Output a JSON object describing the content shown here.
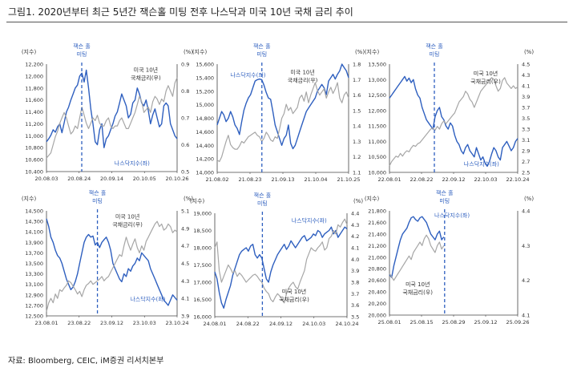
{
  "title": "그림1.  2020년부터 최근 5년간 잭슨홀 미팅 전후 나스닥과 미국 10년 국채 금리 추이",
  "source": "자료: Bloomberg, CEIC, iM증권 리서치본부",
  "colors": {
    "nasdaq": "#2E5FBF",
    "yield": "#A6A6A6",
    "event": "#2E5FBF",
    "axis": "#444444",
    "text": "#333333"
  },
  "chart_data": [
    {
      "type": "line",
      "year": "2020",
      "left_unit": "(지수)",
      "right_unit": "(%)",
      "ylim_left": [
        10400,
        12200
      ],
      "ylim_right": [
        0.5,
        0.9
      ],
      "left_ticks": [
        "12,200",
        "12,000",
        "11,800",
        "11,600",
        "11,400",
        "11,200",
        "11,000",
        "10,800",
        "10,600",
        "10,400"
      ],
      "right_ticks": [
        "0.9",
        "0.8",
        "0.7",
        "0.6",
        "0.5"
      ],
      "x_ticks": [
        "20.08.03",
        "20.08.24",
        "20.09.14",
        "20.10.05",
        "20.10.26"
      ],
      "event_label": [
        "잭슨 홀",
        "미팅"
      ],
      "event_pos": 0.27,
      "nasdaq_label": "나스닥지수(좌)",
      "yield_label": [
        "미국 10년",
        "국채금리(우)"
      ],
      "series": [
        {
          "name": "나스닥지수(좌)",
          "axis": "left",
          "values": [
            10900,
            10950,
            11010,
            11100,
            11060,
            11150,
            11200,
            11050,
            11220,
            11400,
            11480,
            11600,
            11700,
            11800,
            11850,
            12000,
            12050,
            11900,
            12100,
            11800,
            11450,
            11200,
            10900,
            10850,
            11100,
            11200,
            10800,
            10950,
            11000,
            11100,
            11200,
            11330,
            11400,
            11550,
            11700,
            11600,
            11500,
            11300,
            11360,
            11550,
            11600,
            11800,
            11700,
            11550,
            11500,
            11600,
            11420,
            11200,
            11350,
            11450,
            11300,
            11150,
            11200,
            11500,
            11550,
            11500,
            11200,
            11100,
            11000,
            10950
          ]
        },
        {
          "name": "미국 10년 국채금리(우)",
          "axis": "right",
          "values": [
            0.55,
            0.56,
            0.57,
            0.6,
            0.63,
            0.65,
            0.68,
            0.7,
            0.72,
            0.7,
            0.67,
            0.64,
            0.65,
            0.67,
            0.66,
            0.7,
            0.74,
            0.71,
            0.68,
            0.66,
            0.68,
            0.7,
            0.69,
            0.71,
            0.68,
            0.67,
            0.67,
            0.69,
            0.7,
            0.67,
            0.66,
            0.67,
            0.67,
            0.69,
            0.7,
            0.68,
            0.66,
            0.66,
            0.68,
            0.7,
            0.72,
            0.75,
            0.78,
            0.76,
            0.72,
            0.73,
            0.74,
            0.72,
            0.76,
            0.78,
            0.77,
            0.75,
            0.77,
            0.76,
            0.8,
            0.82,
            0.8,
            0.78,
            0.83,
            0.85
          ]
        }
      ]
    },
    {
      "type": "line",
      "year": "2021",
      "left_unit": "(지수)",
      "right_unit": "(%)",
      "ylim_left": [
        14000,
        15600
      ],
      "ylim_right": [
        1.1,
        1.8
      ],
      "left_ticks": [
        "15,600",
        "15,400",
        "15,200",
        "15,000",
        "14,800",
        "14,600",
        "14,400",
        "14,200",
        "14,000"
      ],
      "right_ticks": [
        "1.8",
        "1.7",
        "1.6",
        "1.5",
        "1.4",
        "1.3",
        "1.2",
        "1.1"
      ],
      "x_ticks": [
        "21.08.02",
        "21.08.23",
        "21.09.13",
        "21.10.04",
        "21.10.25"
      ],
      "event_label": [
        "잭슨 홀",
        "미팅"
      ],
      "event_pos": 0.34,
      "nasdaq_label": "나스닥지수(좌)",
      "yield_label": [
        "미국 10년",
        "국채금리(우)"
      ],
      "series": [
        {
          "name": "나스닥지수(좌)",
          "axis": "left",
          "values": [
            14700,
            14800,
            14900,
            14850,
            14750,
            14800,
            14900,
            14820,
            14700,
            14650,
            14560,
            14750,
            14920,
            15020,
            15100,
            15150,
            15250,
            15350,
            15370,
            15380,
            15370,
            15290,
            15180,
            15100,
            15080,
            14900,
            14700,
            14600,
            14500,
            14400,
            14500,
            14550,
            14700,
            14430,
            14350,
            14400,
            14500,
            14600,
            14700,
            14800,
            14900,
            14950,
            15000,
            15050,
            15100,
            15200,
            15250,
            15300,
            15250,
            15150,
            15350,
            15400,
            15450,
            15380,
            15450,
            15500,
            15600,
            15550,
            15500,
            15400
          ]
        },
        {
          "name": "미국 10년 국채금리(우)",
          "axis": "right",
          "values": [
            1.18,
            1.17,
            1.2,
            1.25,
            1.3,
            1.34,
            1.28,
            1.26,
            1.25,
            1.25,
            1.27,
            1.3,
            1.29,
            1.31,
            1.33,
            1.34,
            1.35,
            1.36,
            1.34,
            1.33,
            1.3,
            1.32,
            1.36,
            1.34,
            1.31,
            1.3,
            1.33,
            1.32,
            1.38,
            1.45,
            1.48,
            1.54,
            1.5,
            1.52,
            1.48,
            1.5,
            1.52,
            1.58,
            1.6,
            1.56,
            1.62,
            1.55,
            1.6,
            1.64,
            1.68,
            1.63,
            1.6,
            1.62,
            1.64,
            1.58,
            1.62,
            1.65,
            1.61,
            1.64,
            1.68,
            1.58,
            1.55,
            1.6,
            1.62,
            1.58
          ]
        }
      ]
    },
    {
      "type": "line",
      "year": "2022",
      "left_unit": "(지수)",
      "right_unit": "(%)",
      "ylim_left": [
        10000,
        13500
      ],
      "ylim_right": [
        2.5,
        4.5
      ],
      "left_ticks": [
        "13,500",
        "13,000",
        "12,500",
        "12,000",
        "11,500",
        "11,000",
        "10,500",
        "10,000"
      ],
      "right_ticks": [
        "4.5",
        "4.3",
        "4.1",
        "3.9",
        "3.7",
        "3.5",
        "3.3",
        "3.1",
        "2.9",
        "2.7",
        "2.5"
      ],
      "x_ticks": [
        "22.08.01",
        "22.08.22",
        "22.09.12",
        "22.10.03",
        "22.10.24"
      ],
      "event_label": [
        "잭슨 홀",
        "미팅"
      ],
      "event_pos": 0.35,
      "nasdaq_label": "나스닥지수(좌)",
      "yield_label": [
        "미국 10년",
        "국채금리(우)"
      ],
      "series": [
        {
          "name": "나스닥지수(좌)",
          "axis": "left",
          "values": [
            12400,
            12500,
            12600,
            12700,
            12800,
            12900,
            13000,
            13100,
            12950,
            13050,
            12900,
            13000,
            12700,
            12500,
            12400,
            12100,
            11900,
            11700,
            11600,
            11500,
            11400,
            11800,
            12000,
            12100,
            11800,
            11700,
            11500,
            11400,
            11600,
            11500,
            11200,
            11000,
            10900,
            10700,
            10600,
            10800,
            10900,
            10700,
            10600,
            10500,
            10800,
            10600,
            10400,
            10500,
            10300,
            10200,
            10350,
            10600,
            10800,
            10700,
            10500,
            10400,
            10800,
            10900,
            11000,
            10850,
            10700,
            10800,
            11000,
            11100
          ]
        },
        {
          "name": "미국 10년 국채금리(우)",
          "axis": "right",
          "values": [
            2.62,
            2.7,
            2.75,
            2.8,
            2.78,
            2.85,
            2.8,
            2.86,
            2.9,
            2.88,
            2.95,
            3.0,
            2.98,
            3.03,
            3.05,
            3.1,
            3.15,
            3.2,
            3.25,
            3.3,
            3.32,
            3.28,
            3.35,
            3.3,
            3.4,
            3.45,
            3.4,
            3.45,
            3.5,
            3.55,
            3.6,
            3.7,
            3.8,
            3.85,
            3.9,
            4.0,
            3.95,
            3.85,
            3.8,
            3.7,
            3.8,
            3.9,
            4.0,
            4.05,
            4.1,
            4.15,
            4.2,
            4.25,
            4.22,
            4.1,
            4.0,
            4.05,
            4.2,
            4.25,
            4.15,
            4.1,
            4.05,
            4.1,
            4.05,
            4.08
          ]
        }
      ]
    },
    {
      "type": "line",
      "year": "2023",
      "left_unit": "(지수)",
      "right_unit": "(%)",
      "ylim_left": [
        12500,
        14500
      ],
      "ylim_right": [
        3.9,
        5.1
      ],
      "left_ticks": [
        "14,500",
        "14,300",
        "14,100",
        "13,900",
        "13,700",
        "13,500",
        "13,300",
        "13,100",
        "12,900",
        "12,700",
        "12,500"
      ],
      "right_ticks": [
        "5.1",
        "4.9",
        "4.7",
        "4.5",
        "4.3",
        "4.1",
        "3.9"
      ],
      "x_ticks": [
        "23.08.01",
        "23.08.22",
        "23.09.12",
        "23.10.03",
        "23.10.24"
      ],
      "event_label": [
        "잭슨 홀",
        "미팅"
      ],
      "event_pos": 0.39,
      "nasdaq_label": "나스닥지수(좌)",
      "yield_label": [
        "미국 10년",
        "국채금리(우)"
      ],
      "series": [
        {
          "name": "나스닥지수(좌)",
          "axis": "left",
          "values": [
            14350,
            14200,
            14000,
            13900,
            13750,
            13650,
            13600,
            13500,
            13350,
            13200,
            13100,
            13000,
            13050,
            13150,
            13300,
            13500,
            13700,
            13900,
            14000,
            14050,
            14000,
            14020,
            13850,
            13900,
            13800,
            13900,
            13950,
            14000,
            13900,
            13750,
            13500,
            13400,
            13300,
            13200,
            13150,
            13300,
            13250,
            13400,
            13350,
            13450,
            13500,
            13600,
            13550,
            13700,
            13650,
            13600,
            13550,
            13400,
            13300,
            13200,
            13100,
            13000,
            12900,
            12800,
            12750,
            12700,
            12800,
            12900,
            12850,
            12800
          ]
        },
        {
          "name": "미국 10년 국채금리(우)",
          "axis": "right",
          "values": [
            3.95,
            4.05,
            4.1,
            4.05,
            4.15,
            4.1,
            4.2,
            4.18,
            4.22,
            4.25,
            4.3,
            4.28,
            4.24,
            4.2,
            4.15,
            4.18,
            4.12,
            4.2,
            4.25,
            4.27,
            4.3,
            4.26,
            4.28,
            4.3,
            4.32,
            4.35,
            4.3,
            4.33,
            4.35,
            4.4,
            4.45,
            4.5,
            4.55,
            4.6,
            4.58,
            4.7,
            4.8,
            4.72,
            4.65,
            4.72,
            4.78,
            4.68,
            4.62,
            4.7,
            4.65,
            4.75,
            4.8,
            4.85,
            4.9,
            4.95,
            4.98,
            4.92,
            4.95,
            4.88,
            4.9,
            4.95,
            4.92,
            4.85,
            4.88,
            4.86
          ]
        }
      ]
    },
    {
      "type": "line",
      "year": "2024",
      "left_unit": "(지수)",
      "right_unit": "(%)",
      "ylim_left": [
        16000,
        19000
      ],
      "ylim_right": [
        3.5,
        4.4
      ],
      "left_ticks": [
        "19,000",
        "18,500",
        "18,000",
        "17,500",
        "17,000",
        "16,500",
        "16,000"
      ],
      "right_ticks": [
        "4.4",
        "4.3",
        "4.2",
        "4.1",
        "4.0",
        "3.9",
        "3.8",
        "3.7",
        "3.6",
        "3.5"
      ],
      "x_ticks": [
        "24.08.01",
        "24.08.22",
        "24.09.12",
        "24.10.03",
        "24.10.24"
      ],
      "event_label": [
        "잭슨 홀",
        "미팅"
      ],
      "event_pos": 0.36,
      "nasdaq_label": "나스닥지수(좌)",
      "yield_label": [
        "미국 10년",
        "국채금리(우)"
      ],
      "series": [
        {
          "name": "나스닥지수(좌)",
          "axis": "left",
          "values": [
            17300,
            17100,
            16700,
            16400,
            16250,
            16500,
            16700,
            16900,
            17200,
            17400,
            17600,
            17800,
            17900,
            17950,
            18000,
            17900,
            18050,
            18100,
            17800,
            17700,
            17800,
            17700,
            17400,
            17100,
            17000,
            17300,
            17500,
            17650,
            17800,
            17900,
            18000,
            18100,
            17950,
            18050,
            18200,
            18100,
            18000,
            18100,
            18200,
            18300,
            18350,
            18200,
            18250,
            18300,
            18400,
            18350,
            18500,
            18450,
            18300,
            18400,
            18450,
            18500,
            18600,
            18400,
            18500,
            18300,
            18400,
            18500,
            18600,
            18550
          ]
        },
        {
          "name": "미국 10년 국채금리(우)",
          "axis": "right",
          "values": [
            4.1,
            4.15,
            3.9,
            3.8,
            3.85,
            3.9,
            3.95,
            3.92,
            3.88,
            3.9,
            3.85,
            3.88,
            3.86,
            3.83,
            3.8,
            3.82,
            3.84,
            3.86,
            3.87,
            3.85,
            3.82,
            3.8,
            3.75,
            3.72,
            3.7,
            3.65,
            3.63,
            3.67,
            3.7,
            3.68,
            3.65,
            3.62,
            3.7,
            3.75,
            3.78,
            3.8,
            3.76,
            3.74,
            3.8,
            3.85,
            3.9,
            4.0,
            4.05,
            4.1,
            4.08,
            4.07,
            4.1,
            4.12,
            4.15,
            4.08,
            4.1,
            4.18,
            4.2,
            4.25,
            4.22,
            4.3,
            4.28,
            4.32,
            4.35,
            4.3
          ]
        }
      ]
    },
    {
      "type": "line",
      "year": "2025",
      "left_unit": "(지수)",
      "right_unit": "(%)",
      "ylim_left": [
        20000,
        21800
      ],
      "ylim_right": [
        4.1,
        4.4
      ],
      "left_ticks": [
        "21,800",
        "21,600",
        "21,400",
        "21,200",
        "21,000",
        "20,800",
        "20,600",
        "20,400",
        "20,200",
        "20,000"
      ],
      "right_ticks": [
        "4.4",
        "4.3",
        "4.2",
        "4.1"
      ],
      "x_ticks": [
        "25.08.01",
        "25.08.15",
        "25.08.29",
        "25.09.12",
        "25.09.26"
      ],
      "event_label": [
        "잭슨 홀",
        "미팅"
      ],
      "event_pos": 0.43,
      "nasdaq_label": "나스닥지수(좌)",
      "yield_label": [
        "미국 10년",
        "국채금리(우)"
      ],
      "x_total": 60,
      "series": [
        {
          "name": "나스닥지수(좌)",
          "axis": "left",
          "values": [
            20700,
            20650,
            20850,
            21000,
            21150,
            21300,
            21400,
            21450,
            21500,
            21600,
            21680,
            21700,
            21650,
            21620,
            21680,
            21700,
            21650,
            21600,
            21500,
            21400,
            21350,
            21300,
            21400,
            21450,
            21300,
            21350
          ]
        },
        {
          "name": "미국 10년 국채금리(우)",
          "axis": "right",
          "values": [
            4.22,
            4.21,
            4.2,
            4.21,
            4.22,
            4.23,
            4.24,
            4.25,
            4.26,
            4.27,
            4.26,
            4.28,
            4.29,
            4.3,
            4.31,
            4.3,
            4.32,
            4.33,
            4.32,
            4.3,
            4.29,
            4.28,
            4.3,
            4.31,
            4.29,
            4.3
          ]
        }
      ]
    }
  ]
}
